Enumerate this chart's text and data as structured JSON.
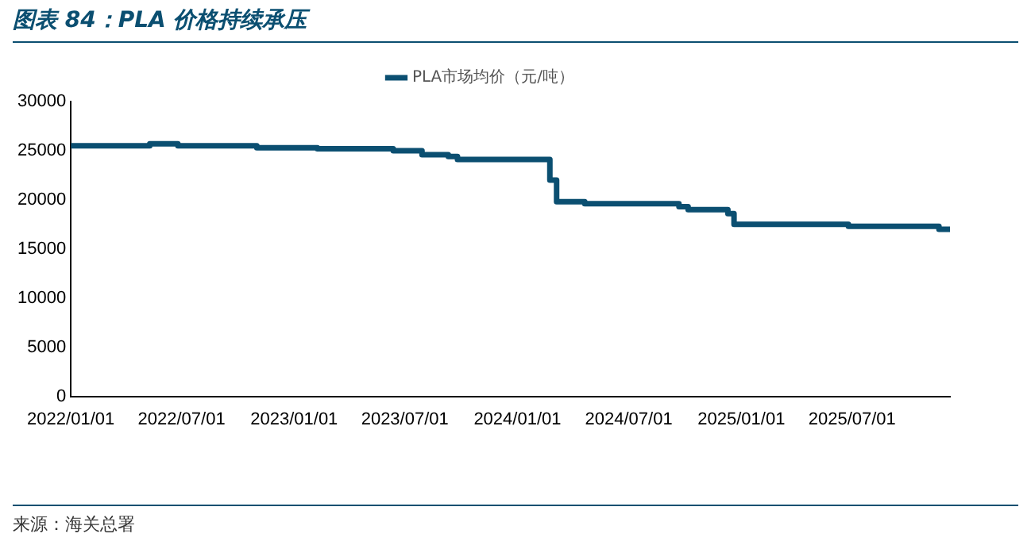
{
  "chart_data": {
    "type": "step",
    "title": "图表 84：PLA 价格持续承压",
    "annotations": [
      "来源：海关总署"
    ],
    "x": [
      "2022-01-01",
      "2022-05-10",
      "2022-06-25",
      "2022-11-01",
      "2023-02-08",
      "2023-06-12",
      "2023-07-29",
      "2023-09-10",
      "2023-09-25",
      "2024-02-23",
      "2024-03-05",
      "2024-04-20",
      "2024-09-21",
      "2024-10-06",
      "2024-12-10",
      "2024-12-20",
      "2025-06-25",
      "2025-11-20",
      "2025-12-08"
    ],
    "series": [
      {
        "name": "PLA市场均价（元/吨）",
        "color": "#0b4f71",
        "values": [
          25500,
          25700,
          25500,
          25300,
          25200,
          25000,
          24600,
          24400,
          24100,
          22000,
          19800,
          19600,
          19300,
          19000,
          18600,
          17500,
          17300,
          17000,
          17000
        ]
      }
    ],
    "xlim": [
      "2022-01-01",
      "2025-12-08"
    ],
    "xticks": [
      {
        "value": "2022-01-01",
        "label": "2022/01/01"
      },
      {
        "value": "2022-07-01",
        "label": "2022/07/01"
      },
      {
        "value": "2023-01-01",
        "label": "2023/01/01"
      },
      {
        "value": "2023-07-01",
        "label": "2023/07/01"
      },
      {
        "value": "2024-01-01",
        "label": "2024/01/01"
      },
      {
        "value": "2024-07-01",
        "label": "2024/07/01"
      },
      {
        "value": "2025-01-01",
        "label": "2025/01/01"
      },
      {
        "value": "2025-07-01",
        "label": "2025/07/01"
      }
    ],
    "ylim": [
      0,
      30000
    ],
    "yticks": [
      0,
      5000,
      10000,
      15000,
      20000,
      25000,
      30000
    ],
    "grid": false,
    "legend": "top",
    "marker": "none",
    "line_style": "solid"
  }
}
